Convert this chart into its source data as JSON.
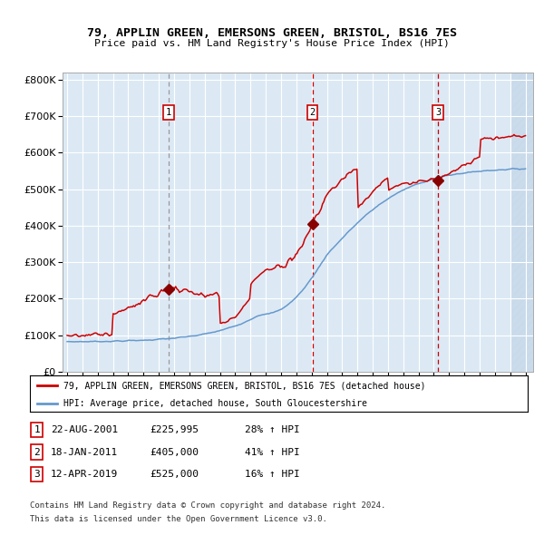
{
  "title": "79, APPLIN GREEN, EMERSONS GREEN, BRISTOL, BS16 7ES",
  "subtitle": "Price paid vs. HM Land Registry's House Price Index (HPI)",
  "legend_line1": "79, APPLIN GREEN, EMERSONS GREEN, BRISTOL, BS16 7ES (detached house)",
  "legend_line2": "HPI: Average price, detached house, South Gloucestershire",
  "sale1_date": "22-AUG-2001",
  "sale1_price": 225995,
  "sale1_price_str": "£225,995",
  "sale1_hpi": "28% ↑ HPI",
  "sale2_date": "18-JAN-2011",
  "sale2_price": 405000,
  "sale2_price_str": "£405,000",
  "sale2_hpi": "41% ↑ HPI",
  "sale3_date": "12-APR-2019",
  "sale3_price": 525000,
  "sale3_price_str": "£525,000",
  "sale3_hpi": "16% ↑ HPI",
  "sale1_year": 2001.64,
  "sale2_year": 2011.05,
  "sale3_year": 2019.28,
  "footer_line1": "Contains HM Land Registry data © Crown copyright and database right 2024.",
  "footer_line2": "This data is licensed under the Open Government Licence v3.0.",
  "background_color": "#dce9f5",
  "hatch_color": "#c8daea",
  "line_color_red": "#cc0000",
  "line_color_blue": "#6699cc",
  "dot_color": "#880000",
  "vline_color_gray": "#999999",
  "vline_color_red": "#cc0000",
  "ylim_min": 0,
  "ylim_max": 820000,
  "yticks": [
    0,
    100000,
    200000,
    300000,
    400000,
    500000,
    600000,
    700000,
    800000
  ],
  "xmin": 1994.7,
  "xmax": 2025.5
}
